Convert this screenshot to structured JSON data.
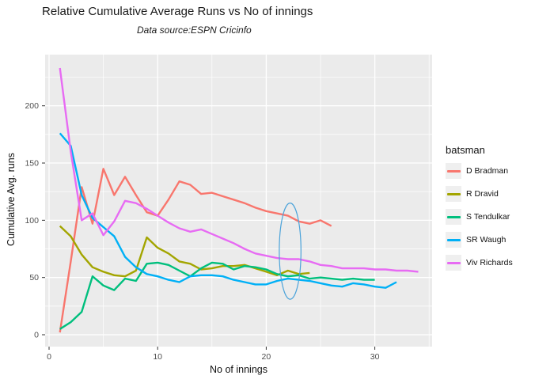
{
  "title": "Relative Cumulative Average Runs vs No of innings",
  "subtitle": "Data source:ESPN Cricinfo",
  "chart_data": {
    "type": "line",
    "title": "Relative Cumulative Average Runs vs No of innings",
    "subtitle": "Data source:ESPN Cricinfo",
    "xlabel": "No of innings",
    "ylabel": "Cumulative Avg. runs",
    "xlim": [
      -0.4,
      35.3
    ],
    "ylim": [
      -10,
      245
    ],
    "x_ticks": [
      0,
      10,
      20,
      30
    ],
    "y_ticks": [
      0,
      50,
      100,
      150,
      200
    ],
    "x_minor_ticks": [
      5,
      15,
      25,
      35
    ],
    "y_minor_ticks": [
      25,
      75,
      125,
      175,
      225
    ],
    "grid": true,
    "panel_bg": "#EBEBEB",
    "grid_color": "#FFFFFF",
    "tick_label_color": "#4d4d4d",
    "legend_title": "batsman",
    "legend_position": "right",
    "legend_key_bg": "#efefef",
    "series": [
      {
        "name": "D Bradman",
        "color": "#F8766D",
        "x_start": 1,
        "x_step": 1,
        "values": [
          2,
          64,
          129,
          97,
          145,
          122,
          138,
          122,
          107,
          104,
          118,
          134,
          131,
          123,
          124,
          121,
          118,
          115,
          111,
          108,
          106,
          104,
          99,
          97,
          100,
          95
        ]
      },
      {
        "name": "R Dravid",
        "color": "#A3A500",
        "x_start": 1,
        "x_step": 1,
        "values": [
          95,
          86,
          70,
          59,
          55,
          52,
          51,
          56,
          85,
          76,
          71,
          64,
          62,
          57,
          58,
          60,
          60,
          61,
          58,
          55,
          52,
          56,
          53,
          54
        ]
      },
      {
        "name": "S Tendulkar",
        "color": "#00BF7D",
        "x_start": 1,
        "x_step": 1,
        "values": [
          5,
          11,
          20,
          51,
          43,
          39,
          49,
          47,
          62,
          63,
          61,
          56,
          51,
          58,
          63,
          62,
          57,
          60,
          59,
          57,
          53,
          51,
          52,
          49,
          50,
          49,
          48,
          49,
          48,
          48
        ]
      },
      {
        "name": "SR Waugh",
        "color": "#00B0F6",
        "x_start": 1,
        "x_step": 1,
        "values": [
          176,
          165,
          122,
          102,
          94,
          86,
          68,
          59,
          53,
          51,
          48,
          46,
          51,
          52,
          52,
          51,
          48,
          46,
          44,
          44,
          47,
          49,
          48,
          47,
          45,
          43,
          42,
          45,
          44,
          42,
          41,
          46
        ]
      },
      {
        "name": "Viv Richards",
        "color": "#E76BF3",
        "x_start": 1,
        "x_step": 1,
        "values": [
          233,
          160,
          100,
          106,
          87,
          99,
          117,
          115,
          110,
          104,
          98,
          93,
          90,
          92,
          88,
          84,
          80,
          75,
          71,
          69,
          67,
          66,
          66,
          64,
          61,
          60,
          58,
          58,
          58,
          57,
          57,
          56,
          56,
          55
        ]
      }
    ],
    "annotation": {
      "shape": "ellipse",
      "cx": 22.2,
      "cy": 73,
      "rx": 1.0,
      "ry": 42,
      "color": "#4BA3DA"
    }
  }
}
